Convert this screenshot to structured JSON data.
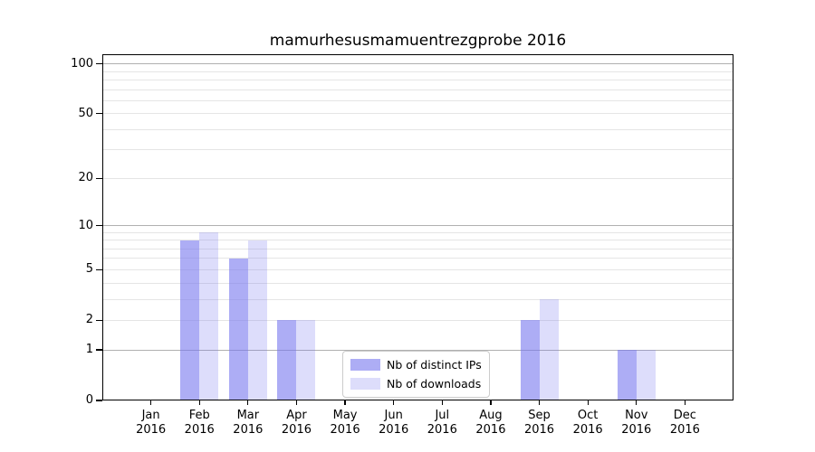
{
  "chart_data": {
    "type": "bar",
    "title": "mamurhesusmamuentrezgprobe 2016",
    "categories": [
      "Jan 2016",
      "Feb 2016",
      "Mar 2016",
      "Apr 2016",
      "May 2016",
      "Jun 2016",
      "Jul 2016",
      "Aug 2016",
      "Sep 2016",
      "Oct 2016",
      "Nov 2016",
      "Dec 2016"
    ],
    "series": [
      {
        "name": "Nb of distinct IPs",
        "color": "#7777ee",
        "alpha": 0.6,
        "values": [
          0,
          8,
          6,
          2,
          0,
          0,
          0,
          0,
          2,
          0,
          1,
          0
        ]
      },
      {
        "name": "Nb of downloads",
        "color": "#7777ee",
        "alpha": 0.25,
        "values": [
          0,
          9,
          8,
          2,
          0,
          0,
          0,
          0,
          3,
          0,
          1,
          0
        ]
      }
    ],
    "xlabel": "",
    "ylabel": "",
    "yscale": "log1p",
    "ylim": [
      0,
      114
    ],
    "y_ticks": [
      0,
      1,
      2,
      5,
      10,
      20,
      50,
      100
    ],
    "y_major_gridlines": [
      1,
      10,
      100
    ],
    "y_minor_gridlines": [
      2,
      3,
      4,
      5,
      6,
      7,
      8,
      9,
      20,
      30,
      40,
      50,
      60,
      70,
      80,
      90
    ],
    "grid": "horizontal",
    "legend": {
      "position": "inside-lower-center",
      "entries": [
        "Nb of distinct IPs",
        "Nb of downloads"
      ]
    }
  },
  "colors": {
    "background": "#ffffff",
    "bar_base": "#7777ee",
    "grid_major": "#b0b0b0",
    "grid_minor": "#e5e5e5",
    "axis": "#000000",
    "text": "#000000",
    "legend_border": "#cccccc"
  }
}
